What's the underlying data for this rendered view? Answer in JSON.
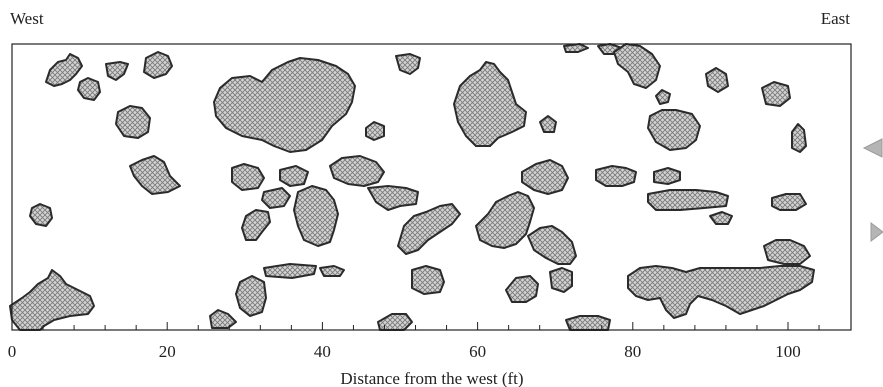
{
  "header": {
    "west": "West",
    "east": "East"
  },
  "axis": {
    "title": "Distance from the west (ft)",
    "range": [
      0,
      107
    ],
    "major_ticks": [
      0,
      20,
      40,
      60,
      80,
      100
    ],
    "minor_step": 4
  },
  "colors": {
    "patch_fill": "#c2c2c2",
    "patch_stroke": "#2b2b2b",
    "frame": "#222222",
    "arrow": "#b5b5b5"
  },
  "nav": {
    "left_icon": "triangle-left-icon",
    "right_icon": "triangle-right-icon"
  }
}
